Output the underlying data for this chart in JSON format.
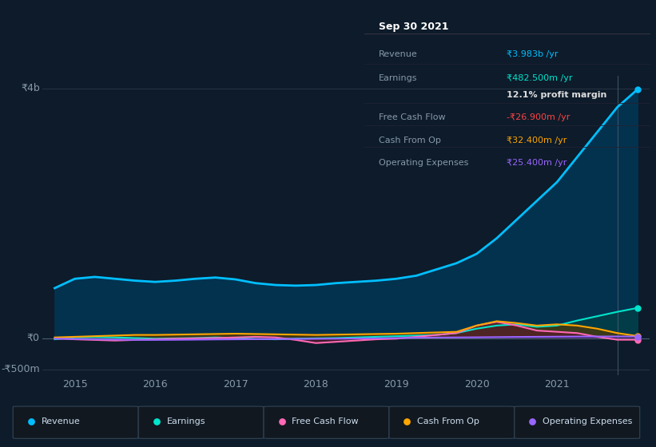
{
  "background_color": "#0d1b2a",
  "plot_bg_color": "#0d1b2a",
  "ylabel_top": "₹4b",
  "ylabel_zero": "₹0",
  "ylabel_bot": "-₹500m",
  "x_ticks": [
    2015,
    2016,
    2017,
    2018,
    2019,
    2020,
    2021
  ],
  "ylim": [
    -600000000,
    4200000000
  ],
  "info_box": {
    "date": "Sep 30 2021",
    "rows": [
      {
        "label": "Revenue",
        "value": "₹3.983b /yr",
        "value_color": "#00bfff"
      },
      {
        "label": "Earnings",
        "value": "₹482.500m /yr",
        "value_color": "#00e5cc"
      },
      {
        "label": "",
        "value": "12.1% profit margin",
        "value_color": "#dddddd"
      },
      {
        "label": "Free Cash Flow",
        "value": "-₹26.900m /yr",
        "value_color": "#ff4444"
      },
      {
        "label": "Cash From Op",
        "value": "₹32.400m /yr",
        "value_color": "#ffa500"
      },
      {
        "label": "Operating Expenses",
        "value": "₹25.400m /yr",
        "value_color": "#9966ff"
      }
    ]
  },
  "series": {
    "revenue": {
      "color": "#00bfff",
      "label": "Revenue",
      "x": [
        2014.75,
        2015.0,
        2015.25,
        2015.5,
        2015.75,
        2016.0,
        2016.25,
        2016.5,
        2016.75,
        2017.0,
        2017.25,
        2017.5,
        2017.75,
        2018.0,
        2018.25,
        2018.5,
        2018.75,
        2019.0,
        2019.25,
        2019.5,
        2019.75,
        2020.0,
        2020.25,
        2020.5,
        2020.75,
        2021.0,
        2021.25,
        2021.5,
        2021.75,
        2022.0
      ],
      "y": [
        800000000,
        950000000,
        980000000,
        950000000,
        920000000,
        900000000,
        920000000,
        950000000,
        970000000,
        940000000,
        880000000,
        850000000,
        840000000,
        850000000,
        880000000,
        900000000,
        920000000,
        950000000,
        1000000000,
        1100000000,
        1200000000,
        1350000000,
        1600000000,
        1900000000,
        2200000000,
        2500000000,
        2900000000,
        3300000000,
        3700000000,
        3983000000
      ]
    },
    "earnings": {
      "color": "#00e5cc",
      "label": "Earnings",
      "x": [
        2014.75,
        2015.0,
        2015.25,
        2015.5,
        2015.75,
        2016.0,
        2016.25,
        2016.5,
        2016.75,
        2017.0,
        2017.25,
        2017.5,
        2017.75,
        2018.0,
        2018.25,
        2018.5,
        2018.75,
        2019.0,
        2019.25,
        2019.5,
        2019.75,
        2020.0,
        2020.25,
        2020.5,
        2020.75,
        2021.0,
        2021.25,
        2021.5,
        2021.75,
        2022.0
      ],
      "y": [
        -20000000,
        10000000,
        15000000,
        10000000,
        0,
        -10000000,
        -5000000,
        0,
        10000000,
        0,
        -15000000,
        -20000000,
        -10000000,
        -5000000,
        0,
        10000000,
        20000000,
        30000000,
        40000000,
        50000000,
        80000000,
        150000000,
        200000000,
        220000000,
        180000000,
        200000000,
        280000000,
        350000000,
        420000000,
        482500000
      ]
    },
    "free_cash_flow": {
      "color": "#ff69b4",
      "label": "Free Cash Flow",
      "x": [
        2014.75,
        2015.0,
        2015.25,
        2015.5,
        2015.75,
        2016.0,
        2016.25,
        2016.5,
        2016.75,
        2017.0,
        2017.25,
        2017.5,
        2017.75,
        2018.0,
        2018.25,
        2018.5,
        2018.75,
        2019.0,
        2019.25,
        2019.5,
        2019.75,
        2020.0,
        2020.25,
        2020.5,
        2020.75,
        2021.0,
        2021.25,
        2021.5,
        2021.75,
        2022.0
      ],
      "y": [
        -5000000,
        -20000000,
        -30000000,
        -40000000,
        -30000000,
        -20000000,
        -10000000,
        -5000000,
        0,
        10000000,
        20000000,
        10000000,
        -30000000,
        -80000000,
        -60000000,
        -40000000,
        -20000000,
        -10000000,
        20000000,
        50000000,
        80000000,
        200000000,
        260000000,
        200000000,
        120000000,
        100000000,
        80000000,
        20000000,
        -26900000,
        -26900000
      ]
    },
    "cash_from_op": {
      "color": "#ffa500",
      "label": "Cash From Op",
      "x": [
        2014.75,
        2015.0,
        2015.25,
        2015.5,
        2015.75,
        2016.0,
        2016.25,
        2016.5,
        2016.75,
        2017.0,
        2017.25,
        2017.5,
        2017.75,
        2018.0,
        2018.25,
        2018.5,
        2018.75,
        2019.0,
        2019.25,
        2019.5,
        2019.75,
        2020.0,
        2020.25,
        2020.5,
        2020.75,
        2021.0,
        2021.25,
        2021.5,
        2021.75,
        2022.0
      ],
      "y": [
        10000000,
        20000000,
        30000000,
        40000000,
        50000000,
        50000000,
        55000000,
        60000000,
        65000000,
        70000000,
        65000000,
        60000000,
        55000000,
        50000000,
        55000000,
        60000000,
        65000000,
        70000000,
        80000000,
        90000000,
        100000000,
        200000000,
        270000000,
        240000000,
        200000000,
        220000000,
        200000000,
        150000000,
        80000000,
        32400000
      ]
    },
    "operating_expenses": {
      "color": "#9966ff",
      "label": "Operating Expenses",
      "x": [
        2014.75,
        2015.0,
        2015.25,
        2015.5,
        2015.75,
        2016.0,
        2016.25,
        2016.5,
        2016.75,
        2017.0,
        2017.25,
        2017.5,
        2017.75,
        2018.0,
        2018.25,
        2018.5,
        2018.75,
        2019.0,
        2019.25,
        2019.5,
        2019.75,
        2020.0,
        2020.25,
        2020.5,
        2020.75,
        2021.0,
        2021.25,
        2021.5,
        2021.75,
        2022.0
      ],
      "y": [
        -10000000,
        -15000000,
        -20000000,
        -25000000,
        -30000000,
        -30000000,
        -28000000,
        -25000000,
        -22000000,
        -20000000,
        -18000000,
        -16000000,
        -14000000,
        -12000000,
        -10000000,
        -8000000,
        -5000000,
        0,
        5000000,
        8000000,
        10000000,
        12000000,
        15000000,
        18000000,
        20000000,
        22000000,
        24000000,
        25000000,
        25400000,
        25400000
      ]
    }
  }
}
